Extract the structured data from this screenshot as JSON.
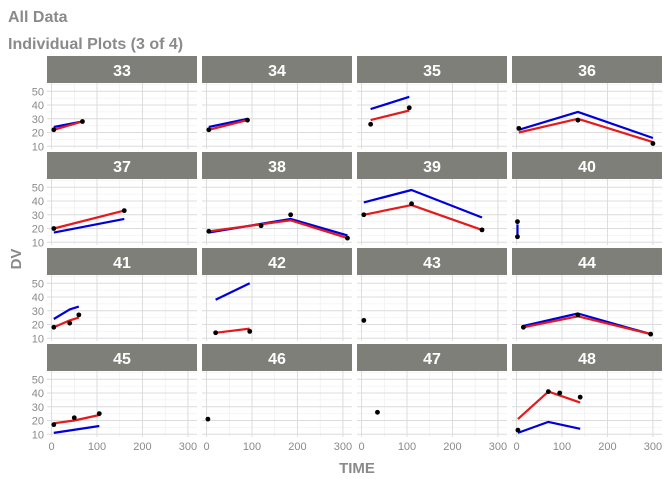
{
  "title": "All Data",
  "subtitle": "Individual Plots (3 of 4)",
  "chart_data": {
    "type": "line",
    "facet": "grid 4x4",
    "xlabel": "TIME",
    "ylabel": "DV",
    "xlim": [
      -10,
      320
    ],
    "ylim": [
      8,
      56
    ],
    "x_ticks": [
      0,
      100,
      200,
      300
    ],
    "y_ticks": [
      10,
      20,
      30,
      40,
      50
    ],
    "x_tick_labels": [
      "0",
      "100",
      "200",
      "300"
    ],
    "y_tick_labels": [
      "10",
      "20",
      "30",
      "40",
      "50"
    ],
    "grid": true,
    "legend": "none",
    "series_styles": {
      "observed": {
        "color": "#000000",
        "mark": "point"
      },
      "red": {
        "color": "#e41a1c",
        "mark": "line"
      },
      "blue": {
        "color": "#0000dd",
        "mark": "line"
      }
    },
    "panels": [
      {
        "id": "33",
        "observed": [
          [
            5,
            22
          ],
          [
            68,
            28
          ]
        ],
        "red": [
          [
            5,
            22
          ],
          [
            68,
            28
          ]
        ],
        "blue": [
          [
            5,
            24
          ],
          [
            68,
            28
          ]
        ]
      },
      {
        "id": "34",
        "observed": [
          [
            5,
            22
          ],
          [
            90,
            29
          ]
        ],
        "red": [
          [
            5,
            22
          ],
          [
            90,
            29
          ]
        ],
        "blue": [
          [
            5,
            24
          ],
          [
            90,
            30
          ]
        ]
      },
      {
        "id": "35",
        "observed": [
          [
            20,
            26
          ],
          [
            105,
            38
          ]
        ],
        "red": [
          [
            20,
            29
          ],
          [
            105,
            36
          ]
        ],
        "blue": [
          [
            20,
            37
          ],
          [
            105,
            46
          ]
        ]
      },
      {
        "id": "36",
        "observed": [
          [
            5,
            23
          ],
          [
            135,
            29
          ],
          [
            300,
            12
          ]
        ],
        "red": [
          [
            5,
            20
          ],
          [
            135,
            30
          ],
          [
            300,
            13
          ]
        ],
        "blue": [
          [
            5,
            22
          ],
          [
            135,
            35
          ],
          [
            300,
            16
          ]
        ]
      },
      {
        "id": "37",
        "observed": [
          [
            5,
            20
          ],
          [
            160,
            33
          ]
        ],
        "red": [
          [
            5,
            20
          ],
          [
            160,
            33
          ]
        ],
        "blue": [
          [
            5,
            17
          ],
          [
            160,
            27
          ]
        ]
      },
      {
        "id": "38",
        "observed": [
          [
            5,
            18
          ],
          [
            120,
            22
          ],
          [
            185,
            30
          ],
          [
            310,
            13
          ]
        ],
        "red": [
          [
            5,
            18
          ],
          [
            185,
            26
          ],
          [
            310,
            13
          ]
        ],
        "blue": [
          [
            5,
            17
          ],
          [
            185,
            27
          ],
          [
            310,
            15
          ]
        ]
      },
      {
        "id": "39",
        "observed": [
          [
            5,
            30
          ],
          [
            110,
            38
          ],
          [
            265,
            19
          ]
        ],
        "red": [
          [
            5,
            30
          ],
          [
            110,
            37
          ],
          [
            265,
            19
          ]
        ],
        "blue": [
          [
            5,
            39
          ],
          [
            110,
            48
          ],
          [
            265,
            28
          ]
        ]
      },
      {
        "id": "40",
        "observed": [
          [
            2,
            25
          ],
          [
            2,
            14
          ]
        ],
        "red": [],
        "blue": [
          [
            2,
            14
          ],
          [
            2,
            23
          ]
        ]
      },
      {
        "id": "41",
        "observed": [
          [
            5,
            18
          ],
          [
            40,
            21
          ],
          [
            60,
            27
          ]
        ],
        "red": [
          [
            5,
            18
          ],
          [
            40,
            23
          ],
          [
            60,
            25
          ]
        ],
        "blue": [
          [
            5,
            24
          ],
          [
            40,
            31
          ],
          [
            60,
            33
          ]
        ]
      },
      {
        "id": "42",
        "observed": [
          [
            20,
            14
          ],
          [
            95,
            15
          ]
        ],
        "red": [
          [
            20,
            14
          ],
          [
            95,
            17
          ]
        ],
        "blue": [
          [
            20,
            38
          ],
          [
            95,
            50
          ]
        ]
      },
      {
        "id": "43",
        "observed": [
          [
            5,
            23
          ]
        ],
        "red": [],
        "blue": []
      },
      {
        "id": "44",
        "observed": [
          [
            15,
            18
          ],
          [
            135,
            27
          ],
          [
            295,
            13
          ]
        ],
        "red": [
          [
            15,
            18
          ],
          [
            135,
            26
          ],
          [
            295,
            13
          ]
        ],
        "blue": [
          [
            15,
            19
          ],
          [
            135,
            28
          ],
          [
            295,
            13
          ]
        ]
      },
      {
        "id": "45",
        "observed": [
          [
            5,
            17
          ],
          [
            50,
            22
          ],
          [
            105,
            25
          ]
        ],
        "red": [
          [
            5,
            18
          ],
          [
            50,
            20
          ],
          [
            105,
            24
          ]
        ],
        "blue": [
          [
            5,
            11
          ],
          [
            105,
            16
          ]
        ]
      },
      {
        "id": "46",
        "observed": [
          [
            3,
            21
          ]
        ],
        "red": [],
        "blue": []
      },
      {
        "id": "47",
        "observed": [
          [
            35,
            26
          ]
        ],
        "red": [],
        "blue": []
      },
      {
        "id": "48",
        "observed": [
          [
            3,
            13
          ],
          [
            70,
            41
          ],
          [
            95,
            40
          ],
          [
            140,
            37
          ]
        ],
        "red": [
          [
            3,
            21
          ],
          [
            70,
            41
          ],
          [
            140,
            33
          ]
        ],
        "blue": [
          [
            3,
            11
          ],
          [
            70,
            19
          ],
          [
            140,
            14
          ]
        ]
      }
    ]
  }
}
